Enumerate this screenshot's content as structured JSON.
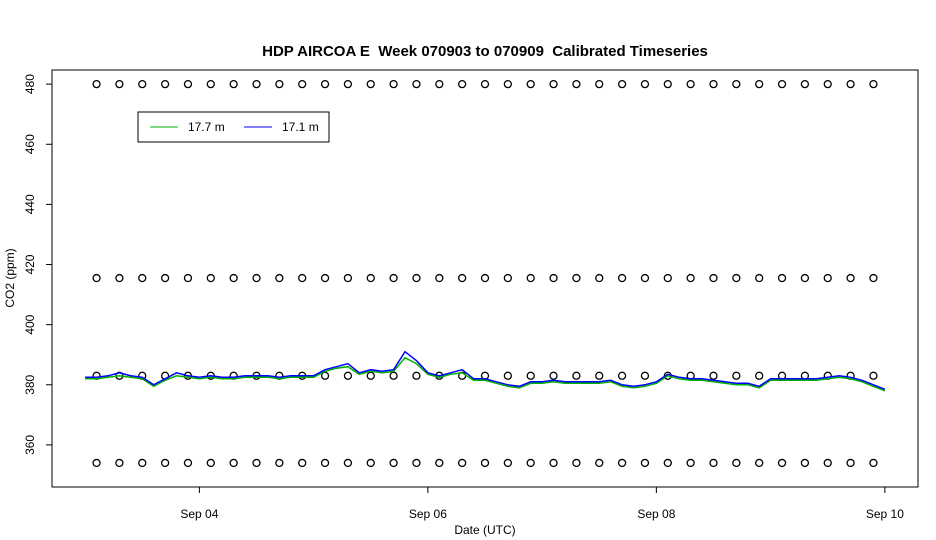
{
  "chart_data": {
    "type": "line",
    "title": "HDP AIRCOA E  Week 070903 to 070909  Calibrated Timeseries",
    "xlabel": "Date (UTC)",
    "ylabel": "CO2 (ppm)",
    "xlim": [
      2.71,
      10.29
    ],
    "xticks": [
      {
        "value": 4,
        "label": "Sep 04"
      },
      {
        "value": 6,
        "label": "Sep 06"
      },
      {
        "value": 8,
        "label": "Sep 08"
      },
      {
        "value": 10,
        "label": "Sep 10"
      }
    ],
    "ylim": [
      346,
      484.7
    ],
    "yticks": [
      360,
      380,
      400,
      420,
      440,
      460,
      480
    ],
    "legend": "top-left",
    "x": [
      3.0,
      3.1,
      3.2,
      3.3,
      3.4,
      3.5,
      3.6,
      3.7,
      3.8,
      3.9,
      4.0,
      4.1,
      4.2,
      4.3,
      4.4,
      4.5,
      4.6,
      4.7,
      4.8,
      4.9,
      5.0,
      5.1,
      5.2,
      5.3,
      5.4,
      5.5,
      5.6,
      5.7,
      5.8,
      5.9,
      6.0,
      6.1,
      6.2,
      6.3,
      6.4,
      6.5,
      6.6,
      6.7,
      6.8,
      6.9,
      7.0,
      7.1,
      7.2,
      7.3,
      7.4,
      7.5,
      7.6,
      7.7,
      7.8,
      7.9,
      8.0,
      8.1,
      8.2,
      8.3,
      8.4,
      8.5,
      8.6,
      8.7,
      8.8,
      8.9,
      9.0,
      9.1,
      9.2,
      9.3,
      9.4,
      9.5,
      9.6,
      9.7,
      9.8,
      9.9,
      10.0
    ],
    "series": [
      {
        "name": "17.7 m",
        "color": "#00b000",
        "values": [
          382,
          382,
          382.5,
          383,
          382.5,
          382,
          379.5,
          381.5,
          383,
          382.5,
          382,
          382.5,
          382,
          382,
          382.5,
          382.5,
          382.5,
          382,
          382.5,
          382.5,
          382.5,
          384.5,
          385.5,
          386,
          383.5,
          384.5,
          384,
          384.5,
          389,
          387,
          383.5,
          382.5,
          383.5,
          384,
          381.5,
          381.5,
          380.5,
          379.5,
          379,
          380.5,
          380.5,
          381,
          380.5,
          380.5,
          380.5,
          380.5,
          381,
          379.5,
          379,
          379.5,
          380.5,
          383,
          382,
          381.5,
          381.5,
          381,
          380.5,
          380,
          380,
          379,
          381.5,
          381.5,
          381.5,
          381.5,
          381.5,
          382,
          382.5,
          382,
          381,
          379.5,
          378
        ]
      },
      {
        "name": "17.1 m",
        "color": "#0000ff",
        "values": [
          382.5,
          382.5,
          383,
          384,
          383,
          382.5,
          380,
          382,
          384,
          383,
          382.5,
          383,
          382.5,
          382.5,
          383,
          383,
          383,
          382.5,
          383,
          383,
          383,
          385,
          386,
          387,
          384,
          385,
          384.5,
          385,
          391,
          388,
          384,
          383,
          384,
          385,
          382,
          382,
          381,
          380,
          379.5,
          381,
          381,
          381.5,
          381,
          381,
          381,
          381,
          381.5,
          380,
          379.5,
          380,
          381,
          383.5,
          382.5,
          382,
          382,
          381.5,
          381,
          380.5,
          380.5,
          379.5,
          382,
          382,
          382,
          382,
          382,
          382.5,
          383,
          382.5,
          381.5,
          380,
          378.5
        ]
      }
    ],
    "calibration": {
      "x": [
        3.1,
        3.3,
        3.5,
        3.7,
        3.9,
        4.1,
        4.3,
        4.5,
        4.7,
        4.9,
        5.1,
        5.3,
        5.5,
        5.7,
        5.9,
        6.1,
        6.3,
        6.5,
        6.7,
        6.9,
        7.1,
        7.3,
        7.5,
        7.7,
        7.9,
        8.1,
        8.3,
        8.5,
        8.7,
        8.9,
        9.1,
        9.3,
        9.5,
        9.7,
        9.9
      ],
      "levels": [
        354,
        383,
        415.5,
        480
      ]
    }
  }
}
